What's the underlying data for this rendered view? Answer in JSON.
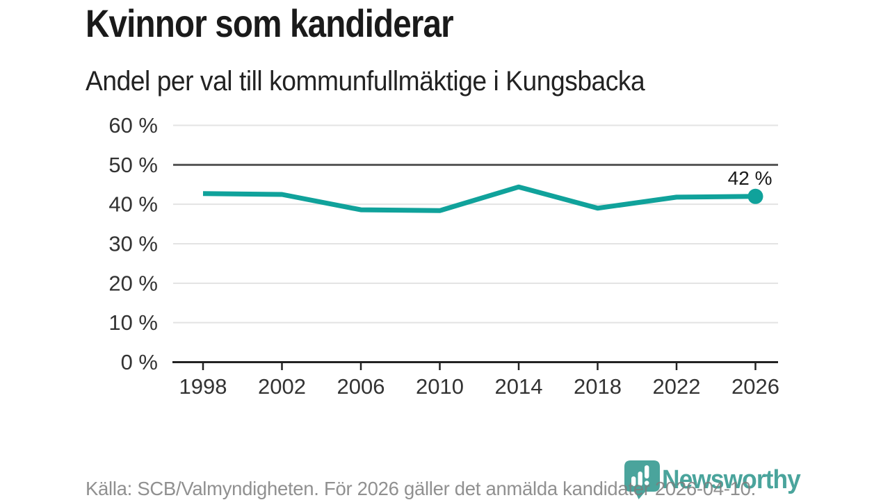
{
  "header": {
    "title": "Kvinnor som kandiderar",
    "subtitle": "Andel per val till kommunfullmäktige i Kungsbacka"
  },
  "chart_data": {
    "type": "line",
    "title": "Kvinnor som kandiderar",
    "subtitle": "Andel per val till kommunfullmäktige i Kungsbacka",
    "x": [
      1998,
      2002,
      2006,
      2010,
      2014,
      2018,
      2022,
      2026
    ],
    "values": [
      42.7,
      42.5,
      38.6,
      38.4,
      44.4,
      39.0,
      41.8,
      42.0
    ],
    "unit": "%",
    "ylim": [
      0,
      60
    ],
    "yticks": [
      0,
      10,
      20,
      30,
      40,
      50,
      60
    ],
    "ytick_suffix": " %",
    "highlight_gridline": 50,
    "grid": "horizontal",
    "legend": "none",
    "end_label": "42 %",
    "end_dot": true
  },
  "footer": {
    "source": "Källa: SCB/Valmyndigheten. För 2026 gäller det anmälda kandidater 2026-04-10.",
    "logo_text": "Newsworthy"
  },
  "colors": {
    "line": "#10a29b",
    "grid": "#e3e3e3",
    "grid_highlight": "#555555",
    "axis": "#222222",
    "title_text": "#1a1a1a",
    "axis_text": "#333333",
    "footer_text": "#8a8a8a",
    "logo": "#4aa49c"
  }
}
